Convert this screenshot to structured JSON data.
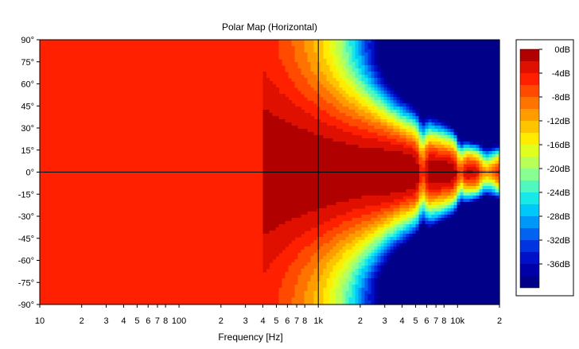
{
  "chart_data": {
    "type": "heatmap",
    "title": "Polar Map (Horizontal)",
    "xlabel": "Frequency [Hz]",
    "ylabel": "",
    "x_scale": "log",
    "xlim": [
      10,
      20000
    ],
    "ylim": [
      -90,
      90
    ],
    "x_ticks": [
      {
        "value": 10,
        "label": "10"
      },
      {
        "value": 20,
        "label": "2"
      },
      {
        "value": 30,
        "label": "3"
      },
      {
        "value": 40,
        "label": "4"
      },
      {
        "value": 50,
        "label": "5"
      },
      {
        "value": 60,
        "label": "6"
      },
      {
        "value": 70,
        "label": "7"
      },
      {
        "value": 80,
        "label": "8"
      },
      {
        "value": 100,
        "label": "100"
      },
      {
        "value": 200,
        "label": "2"
      },
      {
        "value": 300,
        "label": "3"
      },
      {
        "value": 400,
        "label": "4"
      },
      {
        "value": 500,
        "label": "5"
      },
      {
        "value": 600,
        "label": "6"
      },
      {
        "value": 700,
        "label": "7"
      },
      {
        "value": 800,
        "label": "8"
      },
      {
        "value": 1000,
        "label": "1k"
      },
      {
        "value": 2000,
        "label": "2"
      },
      {
        "value": 3000,
        "label": "3"
      },
      {
        "value": 4000,
        "label": "4"
      },
      {
        "value": 5000,
        "label": "5"
      },
      {
        "value": 6000,
        "label": "6"
      },
      {
        "value": 7000,
        "label": "7"
      },
      {
        "value": 8000,
        "label": "8"
      },
      {
        "value": 10000,
        "label": "10k"
      },
      {
        "value": 20000,
        "label": "2"
      }
    ],
    "y_ticks": [
      {
        "value": 90,
        "label": "90°"
      },
      {
        "value": 75,
        "label": "75°"
      },
      {
        "value": 60,
        "label": "60°"
      },
      {
        "value": 45,
        "label": "45°"
      },
      {
        "value": 30,
        "label": "30°"
      },
      {
        "value": 15,
        "label": "15°"
      },
      {
        "value": 0,
        "label": "0°"
      },
      {
        "value": -15,
        "label": "-15°"
      },
      {
        "value": -30,
        "label": "-30°"
      },
      {
        "value": -45,
        "label": "-45°"
      },
      {
        "value": -60,
        "label": "-60°"
      },
      {
        "value": -75,
        "label": "-75°"
      },
      {
        "value": -90,
        "label": "-90°"
      }
    ],
    "crosshair": {
      "x": 1000,
      "y": 0
    },
    "legend": {
      "placement": "right",
      "levels": [
        0,
        -2,
        -4,
        -6,
        -8,
        -10,
        -12,
        -14,
        -16,
        -18,
        -20,
        -22,
        -24,
        -26,
        -28,
        -30,
        -32,
        -34,
        -36,
        -38
      ],
      "colors": [
        "#b00000",
        "#e01000",
        "#ff2000",
        "#ff4a00",
        "#ff7400",
        "#ff9c00",
        "#ffc400",
        "#ffec00",
        "#e0ff20",
        "#b8ff58",
        "#88ff90",
        "#50f8c0",
        "#18e8e8",
        "#00c8f8",
        "#0098f8",
        "#0064f0",
        "#0034e0",
        "#0010c8",
        "#0000a8",
        "#000088"
      ],
      "labels": [
        {
          "level": 0,
          "label": "0dB"
        },
        {
          "level": -4,
          "label": "-4dB"
        },
        {
          "level": -8,
          "label": "-8dB"
        },
        {
          "level": -12,
          "label": "-12dB"
        },
        {
          "level": -16,
          "label": "-16dB"
        },
        {
          "level": -20,
          "label": "-20dB"
        },
        {
          "level": -24,
          "label": "-24dB"
        },
        {
          "level": -28,
          "label": "-28dB"
        },
        {
          "level": -32,
          "label": "-32dB"
        },
        {
          "level": -36,
          "label": "-36dB"
        }
      ]
    },
    "features": [
      {
        "freq": 5500,
        "angle": 0,
        "shape": "dark red null near 0°",
        "level": -2
      },
      {
        "freq": 10500,
        "angle": 0,
        "shape": "dark red null near 0°",
        "level": -2
      },
      {
        "freq": 12500,
        "angle": 25,
        "shape": "deep blue null pockets",
        "level": -38
      }
    ]
  }
}
